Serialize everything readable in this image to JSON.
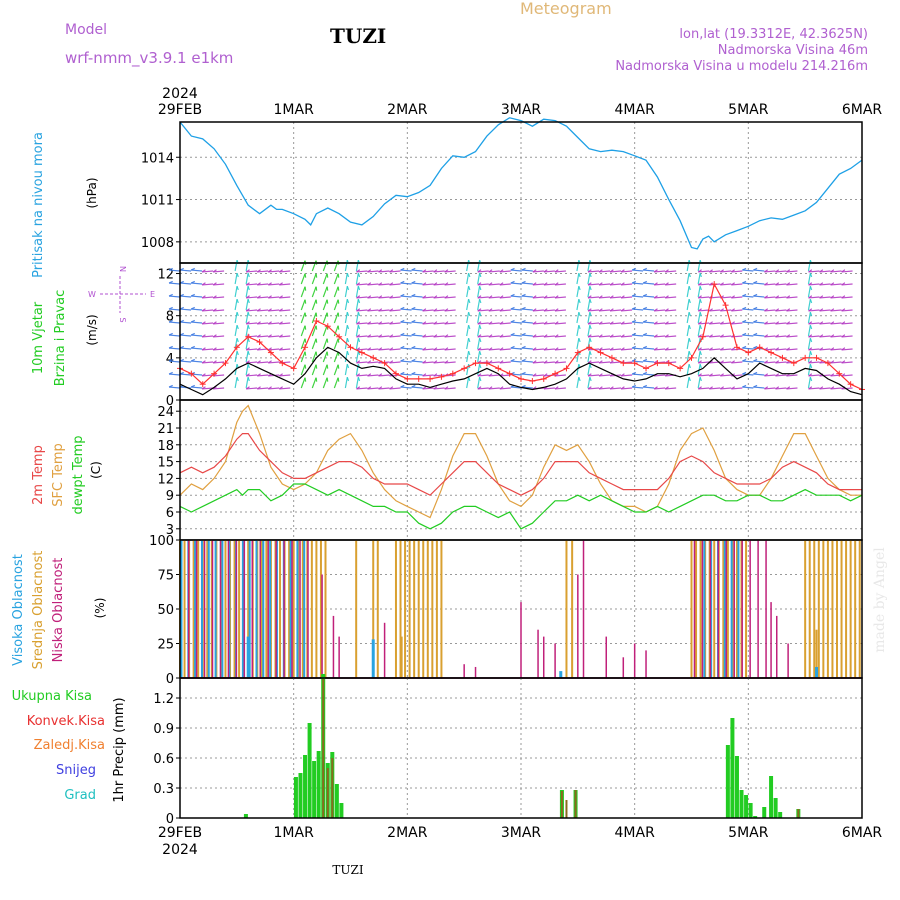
{
  "header": {
    "model_label": "Model",
    "model_name": "wrf-nmm_v3.9.1 e1km",
    "station": "TUZI",
    "meteogram_label": "Meteogram",
    "lonlat": "lon,lat (19.3312E, 42.3625N)",
    "altitude": "Nadmorska Visina 46m",
    "model_altitude": "Nadmorska Visina u modelu 214.216m",
    "footer_station": "TUZI",
    "watermark": "made by Angel"
  },
  "colors": {
    "pressure": "#1ea0e6",
    "wind_speed": "#000000",
    "gust": "#ff3030",
    "temp2m": "#e84848",
    "sfc": "#e0a040",
    "dewpt": "#22cc22",
    "cloud_high": "#29a3e0",
    "cloud_mid": "#d9a030",
    "cloud_low": "#c0207a",
    "precip_total": "#22cc22",
    "precip_conv": "#e83030",
    "precip_frozen": "#f08030",
    "snow": "#4040e0",
    "hail": "#20c0c0"
  },
  "time_axis": {
    "year": "2024",
    "days": [
      "29FEB",
      "1MAR",
      "2MAR",
      "3MAR",
      "4MAR",
      "5MAR",
      "6MAR"
    ]
  },
  "panels": {
    "pressure": {
      "label": "Pritisak na nivou mora",
      "unit": "(hPa)"
    },
    "wind": {
      "label_1": "10m Vjetar",
      "label_2": "Brzina i Pravac",
      "unit": "(m/s)",
      "compass_n": "N",
      "compass_s": "S",
      "compass_w": "W",
      "compass_e": "E"
    },
    "temp": {
      "label_1": "2m Temp",
      "label_2": "SFC Temp",
      "label_3": "dewpt Temp",
      "unit": "(C)"
    },
    "cloud": {
      "label_1": "Visoka Oblacnost",
      "label_2": "Srednja Oblacnost",
      "label_3": "Niska Oblacnost",
      "unit": "(%)"
    },
    "precip": {
      "label_total": "Ukupna Kisa",
      "label_conv": "Konvek.Kisa",
      "label_frozen": "Zaledj.Kisa",
      "label_snow": "Snijeg",
      "label_hail": "Grad",
      "unit": "1hr Precip (mm)"
    }
  },
  "chart_data": [
    {
      "type": "line",
      "name": "pressure",
      "ylim": [
        1006.5,
        1016.5
      ],
      "yticks": [
        "1008",
        "1011",
        "1014"
      ],
      "ytick_values": [
        1008,
        1011,
        1014
      ],
      "x": [
        0,
        0.1,
        0.2,
        0.3,
        0.4,
        0.5,
        0.55,
        0.6,
        0.7,
        0.8,
        0.85,
        0.9,
        1.0,
        1.1,
        1.15,
        1.2,
        1.3,
        1.4,
        1.5,
        1.6,
        1.7,
        1.8,
        1.9,
        2.0,
        2.1,
        2.2,
        2.3,
        2.4,
        2.5,
        2.6,
        2.7,
        2.8,
        2.9,
        3.0,
        3.1,
        3.2,
        3.3,
        3.4,
        3.5,
        3.6,
        3.7,
        3.8,
        3.9,
        4.0,
        4.1,
        4.2,
        4.3,
        4.4,
        4.5,
        4.55,
        4.6,
        4.65,
        4.7,
        4.8,
        4.9,
        5.0,
        5.1,
        5.2,
        5.3,
        5.4,
        5.5,
        5.6,
        5.7,
        5.8,
        5.9,
        6.0
      ],
      "y": [
        1016.5,
        1015.5,
        1015.3,
        1014.6,
        1013.5,
        1012.0,
        1011.3,
        1010.6,
        1010.0,
        1010.6,
        1010.3,
        1010.3,
        1010.0,
        1009.6,
        1009.2,
        1010.0,
        1010.4,
        1010.0,
        1009.4,
        1009.2,
        1009.8,
        1010.7,
        1011.3,
        1011.2,
        1011.5,
        1012.0,
        1013.2,
        1014.1,
        1014.0,
        1014.4,
        1015.5,
        1016.3,
        1016.8,
        1016.6,
        1016.2,
        1016.7,
        1016.6,
        1016.2,
        1015.4,
        1014.6,
        1014.4,
        1014.5,
        1014.4,
        1014.1,
        1013.8,
        1012.6,
        1011.0,
        1009.5,
        1007.6,
        1007.5,
        1008.2,
        1008.4,
        1008.0,
        1008.5,
        1008.8,
        1009.1,
        1009.5,
        1009.7,
        1009.6,
        1009.9,
        1010.2,
        1010.8,
        1011.8,
        1012.8,
        1013.2,
        1013.8
      ]
    },
    {
      "type": "line",
      "name": "wind",
      "ylim": [
        0,
        13
      ],
      "yticks": [
        "0",
        "4",
        "8",
        "12"
      ],
      "ytick_values": [
        0,
        4,
        8,
        12
      ],
      "x": [
        0,
        0.1,
        0.2,
        0.3,
        0.4,
        0.5,
        0.6,
        0.7,
        0.8,
        0.9,
        1.0,
        1.1,
        1.2,
        1.3,
        1.4,
        1.5,
        1.6,
        1.7,
        1.8,
        1.9,
        2.0,
        2.1,
        2.2,
        2.3,
        2.4,
        2.5,
        2.6,
        2.7,
        2.8,
        2.9,
        3.0,
        3.1,
        3.2,
        3.3,
        3.4,
        3.5,
        3.6,
        3.7,
        3.8,
        3.9,
        4.0,
        4.1,
        4.2,
        4.3,
        4.4,
        4.5,
        4.6,
        4.7,
        4.8,
        4.9,
        5.0,
        5.1,
        5.2,
        5.3,
        5.4,
        5.5,
        5.6,
        5.7,
        5.8,
        5.9,
        6.0
      ],
      "series": [
        {
          "name": "wind_speed",
          "values": [
            1.5,
            1.0,
            0.5,
            1.2,
            2.0,
            3.0,
            3.5,
            3.0,
            2.5,
            2.0,
            1.5,
            2.5,
            4.0,
            5.0,
            4.5,
            3.5,
            3.0,
            3.2,
            3.0,
            2.0,
            1.5,
            1.5,
            1.2,
            1.5,
            1.8,
            2.0,
            2.5,
            3.0,
            2.5,
            1.5,
            1.2,
            1.0,
            1.2,
            1.5,
            2.0,
            3.0,
            3.5,
            3.0,
            2.5,
            2.0,
            1.8,
            2.0,
            2.5,
            2.5,
            2.2,
            2.5,
            3.0,
            4.0,
            3.0,
            2.0,
            2.5,
            3.5,
            3.0,
            2.5,
            2.5,
            3.0,
            2.8,
            2.0,
            1.5,
            0.8,
            0.5
          ]
        },
        {
          "name": "gust",
          "values": [
            3.0,
            2.5,
            1.5,
            2.5,
            3.5,
            5.0,
            6.0,
            5.5,
            4.5,
            3.5,
            3.0,
            5.0,
            7.5,
            7.0,
            6.0,
            5.0,
            4.5,
            4.0,
            3.5,
            2.5,
            2.0,
            2.0,
            2.0,
            2.2,
            2.5,
            3.0,
            3.5,
            3.5,
            3.0,
            2.5,
            2.0,
            1.8,
            2.0,
            2.5,
            3.0,
            4.5,
            5.0,
            4.5,
            4.0,
            3.5,
            3.5,
            3.0,
            3.5,
            3.5,
            3.0,
            4.0,
            6.0,
            11.0,
            9.0,
            5.0,
            4.5,
            5.0,
            4.5,
            4.0,
            3.5,
            4.0,
            4.0,
            3.5,
            2.5,
            1.5,
            1.0
          ]
        }
      ]
    },
    {
      "type": "line",
      "name": "temperature",
      "ylim": [
        1,
        26
      ],
      "yticks": [
        "3",
        "6",
        "9",
        "12",
        "15",
        "18",
        "21",
        "24"
      ],
      "ytick_values": [
        3,
        6,
        9,
        12,
        15,
        18,
        21,
        24
      ],
      "x": [
        0,
        0.1,
        0.2,
        0.3,
        0.4,
        0.5,
        0.55,
        0.6,
        0.7,
        0.8,
        0.9,
        1.0,
        1.1,
        1.2,
        1.3,
        1.4,
        1.5,
        1.6,
        1.7,
        1.8,
        1.9,
        2.0,
        2.1,
        2.2,
        2.3,
        2.4,
        2.5,
        2.6,
        2.7,
        2.8,
        2.9,
        3.0,
        3.1,
        3.2,
        3.3,
        3.4,
        3.5,
        3.6,
        3.7,
        3.8,
        3.9,
        4.0,
        4.1,
        4.2,
        4.3,
        4.4,
        4.5,
        4.6,
        4.7,
        4.8,
        4.9,
        5.0,
        5.1,
        5.2,
        5.3,
        5.4,
        5.5,
        5.6,
        5.7,
        5.8,
        5.9,
        6.0
      ],
      "series": [
        {
          "name": "temp2m",
          "values": [
            13,
            14,
            13,
            14,
            16,
            19,
            20,
            20,
            17,
            15,
            13,
            12,
            12,
            13,
            14,
            15,
            15,
            14,
            12,
            11,
            11,
            11,
            10,
            9,
            11,
            13,
            15,
            15,
            13,
            11,
            10,
            9,
            10,
            12,
            15,
            15,
            15,
            13,
            12,
            11,
            10,
            10,
            10,
            10,
            12,
            15,
            16,
            15,
            13,
            12,
            11,
            11,
            11,
            12,
            14,
            15,
            14,
            13,
            11,
            10,
            10,
            10
          ]
        },
        {
          "name": "sfc",
          "values": [
            9,
            11,
            10,
            12,
            15,
            22,
            24,
            25,
            20,
            14,
            11,
            10,
            11,
            13,
            17,
            19,
            20,
            17,
            13,
            10,
            8,
            7,
            6,
            5,
            10,
            16,
            20,
            20,
            16,
            11,
            8,
            7,
            9,
            14,
            18,
            17,
            18,
            15,
            11,
            8,
            7,
            7,
            6,
            7,
            11,
            17,
            20,
            21,
            17,
            12,
            10,
            9,
            9,
            12,
            16,
            20,
            20,
            16,
            12,
            10,
            9,
            9
          ]
        },
        {
          "name": "dewpt",
          "values": [
            7,
            6,
            7,
            8,
            9,
            10,
            9,
            10,
            10,
            8,
            9,
            11,
            11,
            10,
            9,
            10,
            9,
            8,
            7,
            7,
            6,
            6,
            4,
            3,
            4,
            6,
            7,
            7,
            6,
            5,
            6,
            3,
            4,
            6,
            8,
            8,
            9,
            8,
            9,
            8,
            7,
            6,
            6,
            7,
            6,
            7,
            8,
            9,
            9,
            8,
            8,
            9,
            9,
            8,
            8,
            9,
            10,
            9,
            9,
            9,
            8,
            9
          ]
        }
      ]
    },
    {
      "type": "bar",
      "name": "cloud",
      "ylim": [
        0,
        100
      ],
      "yticks": [
        "0",
        "25",
        "50",
        "75",
        "100"
      ],
      "ytick_values": [
        0,
        25,
        50,
        75,
        100
      ],
      "full_cover_mid": [
        [
          0.0,
          1.3
        ],
        [
          1.7,
          1.75
        ],
        [
          1.9,
          2.3
        ],
        [
          4.5,
          5.0
        ],
        [
          5.5,
          6.0
        ]
      ],
      "full_cover_high": [
        [
          0.0,
          0.6
        ],
        [
          0.6,
          1.1
        ],
        [
          4.6,
          4.95
        ]
      ],
      "full_cover_low": [
        [
          0.05,
          1.15
        ],
        [
          4.5,
          5.2
        ]
      ],
      "sparse_low": [
        [
          1.25,
          75
        ],
        [
          1.35,
          45
        ],
        [
          1.4,
          30
        ],
        [
          2.5,
          10
        ],
        [
          2.6,
          8
        ],
        [
          3.0,
          55
        ],
        [
          3.15,
          35
        ],
        [
          3.2,
          30
        ],
        [
          3.5,
          75
        ],
        [
          3.55,
          100
        ],
        [
          3.45,
          60
        ],
        [
          3.75,
          30
        ],
        [
          4.0,
          25
        ],
        [
          4.1,
          20
        ],
        [
          5.25,
          45
        ],
        [
          5.35,
          25
        ],
        [
          5.2,
          55
        ],
        [
          1.8,
          40
        ],
        [
          3.3,
          25
        ],
        [
          3.9,
          15
        ]
      ],
      "sparse_mid": [
        [
          1.55,
          100
        ],
        [
          1.95,
          30
        ],
        [
          3.4,
          100
        ],
        [
          3.45,
          100
        ],
        [
          5.6,
          35
        ]
      ],
      "sparse_high": [
        [
          1.7,
          28
        ],
        [
          0.6,
          30
        ],
        [
          3.35,
          5
        ],
        [
          5.6,
          8
        ]
      ]
    },
    {
      "type": "bar",
      "name": "precip",
      "ylim": [
        0,
        1.4
      ],
      "yticks": [
        "0",
        "0.3",
        "0.6",
        "0.9",
        "1.2"
      ],
      "ytick_values": [
        0,
        0.3,
        0.6,
        0.9,
        1.2
      ],
      "bars_total": [
        [
          0.58,
          0.04
        ],
        [
          1.02,
          0.41
        ],
        [
          1.06,
          0.45
        ],
        [
          1.1,
          0.63
        ],
        [
          1.14,
          0.95
        ],
        [
          1.18,
          0.57
        ],
        [
          1.22,
          0.67
        ],
        [
          1.26,
          1.44
        ],
        [
          1.3,
          0.55
        ],
        [
          1.34,
          0.66
        ],
        [
          1.38,
          0.34
        ],
        [
          1.42,
          0.15
        ],
        [
          3.36,
          0.28
        ],
        [
          3.48,
          0.28
        ],
        [
          4.82,
          0.73
        ],
        [
          4.86,
          1.0
        ],
        [
          4.9,
          0.62
        ],
        [
          4.94,
          0.28
        ],
        [
          4.98,
          0.23
        ],
        [
          5.02,
          0.15
        ],
        [
          5.06,
          0.02
        ],
        [
          5.14,
          0.11
        ],
        [
          5.2,
          0.42
        ],
        [
          5.24,
          0.2
        ],
        [
          5.28,
          0.06
        ],
        [
          5.44,
          0.09
        ]
      ],
      "bars_conv": [
        [
          1.26,
          1.39
        ],
        [
          1.3,
          0.5
        ],
        [
          1.34,
          0.6
        ],
        [
          3.36,
          0.27
        ],
        [
          3.4,
          0.18
        ],
        [
          3.48,
          0.28
        ],
        [
          5.44,
          0.09
        ]
      ]
    }
  ]
}
